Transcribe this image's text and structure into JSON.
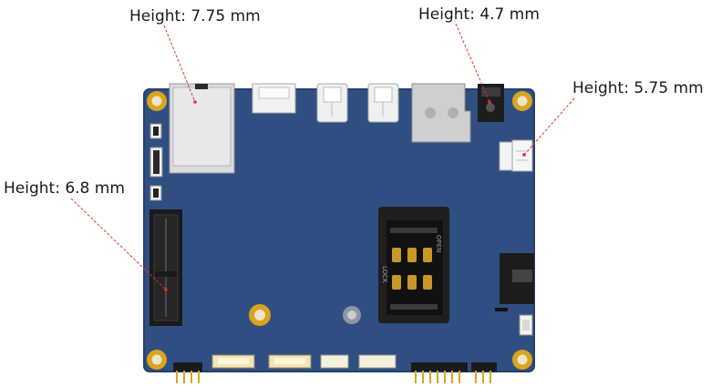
{
  "callouts": [
    {
      "text": "Height: 7.75 mm"
    },
    {
      "text": "Height: 4.7 mm"
    },
    {
      "text": "Height: 5.75 mm"
    },
    {
      "text": "Height: 6.8 mm"
    }
  ],
  "silkscreen": {
    "open": "OPEN",
    "lock": "LOCK"
  },
  "colors": {
    "board": "#2f4f82",
    "board_edge": "#24406c",
    "leader_line": "#e03030",
    "gold": "#d9a51e",
    "connector_white": "#ececec",
    "connector_dark": "#1d1d1d"
  }
}
